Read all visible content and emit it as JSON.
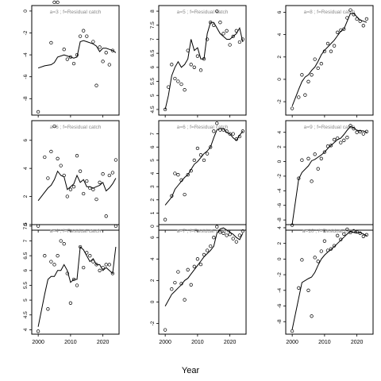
{
  "figure": {
    "xlabel": "Year",
    "x_ticks": [
      2000,
      2010,
      2020
    ]
  },
  "chart_data": [
    {
      "type": "scatter+line",
      "label": "a=3 ; f=Residual catch",
      "xlim": [
        1998,
        2025
      ],
      "ylim": [
        -9.5,
        0.5
      ],
      "y_ticks": [
        0,
        -2,
        -4,
        -6,
        -8
      ],
      "x": [
        2000,
        2002,
        2004,
        2005,
        2006,
        2008,
        2009,
        2010,
        2011,
        2012,
        2013,
        2014,
        2015,
        2017,
        2018,
        2019,
        2020,
        2021,
        2022,
        2023,
        2024
      ],
      "observed": [
        -9.2,
        null,
        -2.9,
        0.8,
        0.8,
        -3.5,
        -4.4,
        -4.2,
        -4.8,
        -4.0,
        -2.3,
        -1.8,
        -2.3,
        -2.8,
        -6.8,
        -3.3,
        -4.6,
        -3.8,
        -4.9,
        -3.6,
        null
      ],
      "fitted": [
        -5.2,
        -5.0,
        -4.9,
        -4.7,
        -4.2,
        -4.0,
        -4.1,
        -4.2,
        -4.3,
        -4.2,
        -2.8,
        -2.7,
        -2.8,
        -3.0,
        -3.2,
        -3.7,
        -3.4,
        -3.4,
        -3.5,
        -3.6,
        -3.8
      ]
    },
    {
      "type": "scatter+line",
      "label": "a=5 ; f=Residual catch",
      "xlim": [
        1998,
        2025
      ],
      "ylim": [
        4.3,
        8.2
      ],
      "y_ticks": [
        4.5,
        5.0,
        5.5,
        6.0,
        6.5,
        7.0,
        7.5,
        8.0
      ],
      "x": [
        2000,
        2001,
        2002,
        2003,
        2004,
        2005,
        2006,
        2007,
        2008,
        2009,
        2010,
        2011,
        2012,
        2013,
        2014,
        2015,
        2016,
        2017,
        2018,
        2019,
        2020,
        2021,
        2022,
        2023,
        2024
      ],
      "observed": [
        4.5,
        5.3,
        6.1,
        5.6,
        5.5,
        5.4,
        5.2,
        6.6,
        6.1,
        6.0,
        6.4,
        5.9,
        6.3,
        7.0,
        7.6,
        7.5,
        8.0,
        7.6,
        7.2,
        7.3,
        6.8,
        7.1,
        7.3,
        6.9,
        7.0
      ],
      "fitted": [
        4.5,
        5.0,
        5.7,
        6.0,
        6.2,
        6.0,
        6.1,
        6.3,
        7.0,
        6.6,
        6.7,
        6.3,
        6.3,
        7.2,
        7.6,
        7.6,
        7.4,
        7.2,
        7.1,
        7.0,
        7.0,
        7.1,
        7.2,
        7.4,
        6.9
      ]
    },
    {
      "type": "scatter+line",
      "label": "a=8 ; f=Residual catch",
      "xlim": [
        1998,
        2025
      ],
      "ylim": [
        -3.2,
        6.6
      ],
      "y_ticks": [
        -2,
        0,
        2,
        4,
        6
      ],
      "x": [
        2000,
        2002,
        2003,
        2004,
        2005,
        2006,
        2007,
        2008,
        2009,
        2010,
        2011,
        2012,
        2013,
        2014,
        2015,
        2016,
        2017,
        2018,
        2019,
        2020,
        2021,
        2022,
        2023
      ],
      "observed": [
        -2.6,
        -1.6,
        0.4,
        -1.4,
        -0.2,
        0.4,
        1.8,
        1.0,
        1.4,
        2.5,
        3.2,
        2.5,
        3.0,
        4.2,
        4.4,
        4.5,
        5.5,
        6.2,
        5.8,
        5.4,
        5.2,
        4.8,
        5.4
      ],
      "fitted": [
        -2.4,
        -0.9,
        -0.2,
        0.2,
        0.4,
        0.8,
        1.1,
        1.6,
        2.2,
        2.6,
        2.9,
        3.2,
        3.5,
        3.9,
        4.3,
        4.5,
        5.2,
        5.9,
        5.9,
        5.6,
        5.3,
        5.2,
        5.1
      ]
    },
    {
      "type": "scatter+line",
      "label": "a=6 ; f=Residual catch",
      "xlim": [
        1998,
        2025
      ],
      "ylim": [
        -0.4,
        7.4
      ],
      "y_ticks": [
        0,
        2,
        4,
        6
      ],
      "x": [
        2000,
        2002,
        2003,
        2004,
        2005,
        2006,
        2007,
        2008,
        2009,
        2010,
        2011,
        2012,
        2013,
        2014,
        2015,
        2016,
        2017,
        2018,
        2019,
        2020,
        2021,
        2022,
        2023,
        2024
      ],
      "observed": [
        -0.1,
        4.8,
        3.3,
        5.2,
        7.0,
        4.7,
        4.2,
        3.5,
        2.0,
        2.5,
        2.7,
        4.9,
        3.8,
        2.2,
        3.1,
        2.6,
        2.5,
        1.8,
        3.0,
        3.6,
        0.6,
        3.5,
        3.7,
        4.6
      ],
      "fitted": [
        1.7,
        2.3,
        2.6,
        2.8,
        3.2,
        3.8,
        3.5,
        3.4,
        2.5,
        2.7,
        2.9,
        3.5,
        3.0,
        3.2,
        2.7,
        2.7,
        2.6,
        2.7,
        2.8,
        3.0,
        2.4,
        2.6,
        2.9,
        3.3
      ]
    },
    {
      "type": "scatter+line",
      "label": "a=6 ; f=Residual catch",
      "xlim": [
        1998,
        2025
      ],
      "ylim": [
        -0.3,
        8.0
      ],
      "y_ticks": [
        0,
        1,
        2,
        3,
        4,
        5,
        6,
        7
      ],
      "x": [
        2000,
        2002,
        2003,
        2004,
        2005,
        2006,
        2007,
        2008,
        2009,
        2010,
        2011,
        2012,
        2013,
        2014,
        2015,
        2016,
        2017,
        2018,
        2019,
        2020,
        2021,
        2022,
        2023,
        2024
      ],
      "observed": [
        0.5,
        2.3,
        4.0,
        3.9,
        3.5,
        2.4,
        3.9,
        4.2,
        5.0,
        5.9,
        5.4,
        5.0,
        5.5,
        6.0,
        7.2,
        7.8,
        7.3,
        7.3,
        7.2,
        7.0,
        7.0,
        6.6,
        6.8,
        7.2
      ],
      "fitted": [
        1.6,
        2.2,
        2.8,
        3.1,
        3.4,
        3.7,
        3.9,
        4.3,
        4.7,
        4.9,
        5.2,
        5.5,
        5.7,
        6.0,
        6.7,
        7.3,
        7.4,
        7.4,
        7.1,
        7.0,
        6.7,
        6.5,
        6.9,
        7.2
      ]
    },
    {
      "type": "scatter+line",
      "label": "a=9 ; f=Residual catch",
      "xlim": [
        1998,
        2025
      ],
      "ylim": [
        -9.4,
        5.6
      ],
      "y_ticks": [
        4,
        2,
        0,
        -2,
        -4,
        -6,
        -8
      ],
      "x": [
        2000,
        2002,
        2003,
        2005,
        2006,
        2007,
        2008,
        2009,
        2010,
        2011,
        2012,
        2013,
        2014,
        2015,
        2016,
        2017,
        2018,
        2019,
        2020,
        2021,
        2022,
        2023
      ],
      "observed": [
        -8.7,
        -2.3,
        0.2,
        0.4,
        -2.7,
        1.0,
        -1.0,
        0.4,
        1.3,
        2.1,
        2.2,
        3.0,
        3.2,
        2.6,
        2.9,
        3.3,
        4.9,
        4.5,
        4.0,
        4.1,
        3.8,
        4.1
      ],
      "fitted": [
        -8.6,
        -2.4,
        -1.5,
        -0.6,
        0.1,
        0.3,
        0.6,
        0.9,
        1.3,
        1.8,
        2.2,
        2.6,
        3.0,
        3.2,
        3.7,
        4.3,
        4.8,
        4.6,
        4.3,
        4.2,
        4.2,
        4.0
      ]
    },
    {
      "type": "scatter+line",
      "label": "a=4 ; f=Residual catch",
      "xlim": [
        1998,
        2025
      ],
      "ylim": [
        3.85,
        7.55
      ],
      "y_ticks": [
        4.0,
        4.5,
        5.0,
        5.5,
        6.0,
        6.5,
        7.0,
        7.5
      ],
      "x": [
        2000,
        2002,
        2003,
        2004,
        2005,
        2006,
        2007,
        2008,
        2009,
        2010,
        2011,
        2012,
        2013,
        2014,
        2015,
        2016,
        2017,
        2018,
        2019,
        2020,
        2021,
        2022,
        2023,
        2024
      ],
      "observed": [
        3.95,
        6.5,
        4.7,
        6.3,
        6.2,
        6.5,
        7.0,
        6.9,
        5.9,
        4.9,
        5.7,
        5.5,
        6.8,
        6.1,
        6.6,
        6.5,
        6.3,
        6.2,
        6.0,
        6.1,
        6.2,
        6.2,
        5.9,
        7.5
      ],
      "fitted": [
        4.1,
        5.2,
        5.7,
        5.8,
        5.8,
        6.0,
        6.0,
        6.2,
        6.0,
        5.6,
        5.7,
        5.7,
        6.8,
        6.7,
        6.5,
        6.3,
        6.4,
        6.2,
        6.2,
        6.0,
        6.1,
        6.0,
        5.9,
        6.8
      ]
    },
    {
      "type": "scatter+line",
      "label": "a=7 ; f=Residual catch",
      "xlim": [
        1998,
        2025
      ],
      "ylim": [
        -3.0,
        7.2
      ],
      "y_ticks": [
        -2,
        0,
        2,
        4,
        6
      ],
      "x": [
        2000,
        2002,
        2003,
        2004,
        2005,
        2006,
        2007,
        2008,
        2009,
        2010,
        2011,
        2012,
        2013,
        2014,
        2015,
        2016,
        2017,
        2018,
        2019,
        2020,
        2021,
        2022,
        2023,
        2024
      ],
      "observed": [
        -2.6,
        1.2,
        1.8,
        2.8,
        1.7,
        0.2,
        3.0,
        1.6,
        3.3,
        4.0,
        3.5,
        4.4,
        4.8,
        5.2,
        6.0,
        7.0,
        6.5,
        6.4,
        6.2,
        6.3,
        5.9,
        5.6,
        6.2,
        6.6
      ],
      "fitted": [
        -0.4,
        0.7,
        1.0,
        1.3,
        1.6,
        2.0,
        2.2,
        2.6,
        3.0,
        3.4,
        3.8,
        4.2,
        4.5,
        4.8,
        5.2,
        6.4,
        6.8,
        6.9,
        6.7,
        6.5,
        6.3,
        6.0,
        5.8,
        6.4
      ]
    },
    {
      "type": "scatter+line",
      "label": "a=10 ; f=Residual catch",
      "xlim": [
        1998,
        2025
      ],
      "ylim": [
        -9.6,
        4.4
      ],
      "y_ticks": [
        4,
        2,
        0,
        -2,
        -4,
        -6,
        -8
      ],
      "x": [
        2000,
        2002,
        2003,
        2005,
        2006,
        2007,
        2008,
        2009,
        2010,
        2011,
        2012,
        2013,
        2014,
        2015,
        2016,
        2017,
        2018,
        2019,
        2020,
        2021,
        2022,
        2023
      ],
      "observed": [
        -9.2,
        -3.7,
        -0.1,
        -4.0,
        -7.3,
        0.2,
        -0.3,
        1.0,
        2.3,
        1.1,
        1.3,
        1.7,
        3.0,
        2.5,
        3.2,
        3.8,
        3.4,
        3.6,
        3.5,
        3.3,
        2.9,
        3.1
      ],
      "fitted": [
        -9.0,
        -5.0,
        -3.0,
        -2.5,
        -2.3,
        -1.7,
        -0.8,
        0.0,
        0.5,
        0.9,
        1.2,
        1.6,
        2.0,
        2.4,
        2.8,
        3.2,
        3.5,
        3.4,
        3.3,
        3.4,
        3.2,
        3.0
      ]
    }
  ]
}
